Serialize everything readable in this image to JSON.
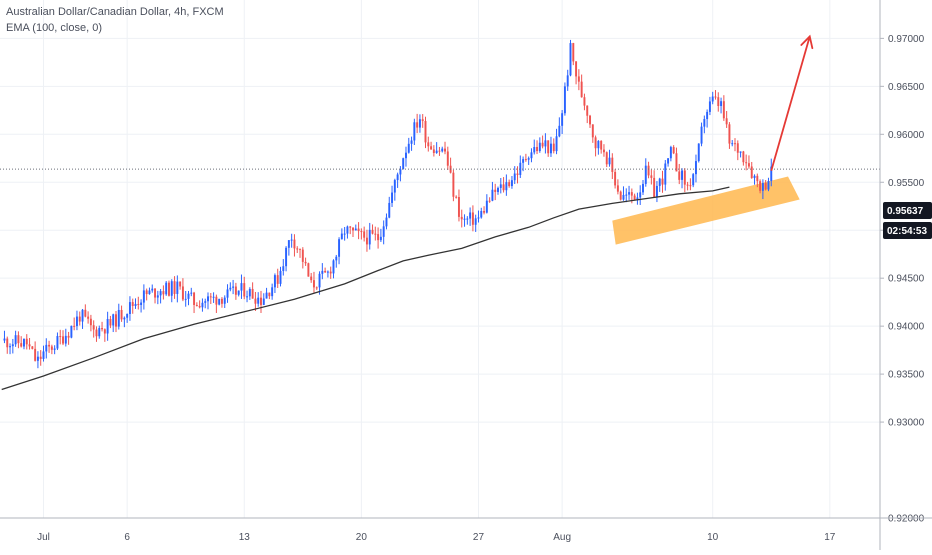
{
  "legend": {
    "symbol_line": "Australian Dollar/Canadian Dollar, 4h, FXCM",
    "indicator_line": "EMA (100, close, 0)"
  },
  "price_tag": {
    "value": "0.95637",
    "countdown": "02:54:53"
  },
  "colors": {
    "up": "#2962ff",
    "down": "#ef5350",
    "ema": "#333333",
    "channel": "#ffb74d",
    "arrow": "#e53935",
    "grid": "#eef1f5",
    "tag_bg": "#131722",
    "axis_text": "#4a4f5c"
  },
  "chart_data": {
    "type": "candlestick",
    "title": "Australian Dollar/Canadian Dollar, 4h, FXCM",
    "indicator": "EMA (100, close, 0)",
    "ylim": [
      0.92,
      0.974
    ],
    "y_ticks": [
      "0.97000",
      "0.96500",
      "0.96000",
      "0.95500",
      "0.95000",
      "0.94500",
      "0.94000",
      "0.93500",
      "0.93000",
      "0.92000"
    ],
    "y_tick_values": [
      0.97,
      0.965,
      0.96,
      0.955,
      0.95,
      0.945,
      0.94,
      0.935,
      0.93,
      0.92
    ],
    "x_ticks": [
      "Jul",
      "6",
      "13",
      "20",
      "27",
      "Aug",
      "10",
      "17"
    ],
    "x_tick_days": [
      1,
      6,
      13,
      20,
      27,
      32,
      41,
      48
    ],
    "xlim_days": [
      -1.6,
      51
    ],
    "last_price": 0.95637,
    "ema": [
      [
        -1.5,
        0.9334
      ],
      [
        1,
        0.9348
      ],
      [
        4,
        0.9367
      ],
      [
        7,
        0.9387
      ],
      [
        10,
        0.9402
      ],
      [
        13,
        0.9415
      ],
      [
        16,
        0.9428
      ],
      [
        19,
        0.9444
      ],
      [
        21,
        0.9458
      ],
      [
        22.5,
        0.9468
      ],
      [
        24,
        0.9474
      ],
      [
        26,
        0.9481
      ],
      [
        28,
        0.9493
      ],
      [
        30,
        0.9503
      ],
      [
        31.5,
        0.9513
      ],
      [
        33,
        0.9522
      ],
      [
        35,
        0.9528
      ],
      [
        37,
        0.9533
      ],
      [
        39,
        0.9538
      ],
      [
        41,
        0.9541
      ],
      [
        42,
        0.9545
      ]
    ],
    "anchors": [
      [
        -1.5,
        0.9385
      ],
      [
        0,
        0.9382
      ],
      [
        0.6,
        0.9362
      ],
      [
        1,
        0.9372
      ],
      [
        1.8,
        0.9383
      ],
      [
        2.5,
        0.9395
      ],
      [
        3.2,
        0.9412
      ],
      [
        4,
        0.9395
      ],
      [
        5,
        0.9402
      ],
      [
        6,
        0.9418
      ],
      [
        7,
        0.9432
      ],
      [
        8,
        0.9438
      ],
      [
        9,
        0.944
      ],
      [
        10,
        0.9425
      ],
      [
        11,
        0.9428
      ],
      [
        12,
        0.9432
      ],
      [
        13,
        0.9438
      ],
      [
        14,
        0.9428
      ],
      [
        15,
        0.945
      ],
      [
        15.8,
        0.9495
      ],
      [
        16.4,
        0.9475
      ],
      [
        17,
        0.9442
      ],
      [
        18,
        0.9455
      ],
      [
        18.5,
        0.9475
      ],
      [
        19,
        0.95
      ],
      [
        20,
        0.9493
      ],
      [
        21,
        0.9492
      ],
      [
        21.5,
        0.9518
      ],
      [
        22,
        0.9548
      ],
      [
        22.5,
        0.9578
      ],
      [
        23,
        0.96
      ],
      [
        23.5,
        0.9618
      ],
      [
        24,
        0.959
      ],
      [
        25,
        0.9582
      ],
      [
        25.5,
        0.954
      ],
      [
        26,
        0.951
      ],
      [
        27,
        0.9512
      ],
      [
        27.5,
        0.9528
      ],
      [
        28,
        0.954
      ],
      [
        28.5,
        0.9545
      ],
      [
        29,
        0.9555
      ],
      [
        29.5,
        0.9565
      ],
      [
        30,
        0.9582
      ],
      [
        31,
        0.959
      ],
      [
        31.5,
        0.958
      ],
      [
        32,
        0.9625
      ],
      [
        32.5,
        0.9688
      ],
      [
        33,
        0.965
      ],
      [
        33.5,
        0.9625
      ],
      [
        34,
        0.959
      ],
      [
        34.5,
        0.9585
      ],
      [
        35,
        0.956
      ],
      [
        35.5,
        0.9535
      ],
      [
        36,
        0.9535
      ],
      [
        36.5,
        0.9538
      ],
      [
        37,
        0.956
      ],
      [
        37.5,
        0.954
      ],
      [
        38,
        0.9555
      ],
      [
        38.5,
        0.958
      ],
      [
        39,
        0.956
      ],
      [
        39.5,
        0.9545
      ],
      [
        40,
        0.9565
      ],
      [
        40.5,
        0.962
      ],
      [
        41,
        0.9635
      ],
      [
        41.5,
        0.963
      ],
      [
        42,
        0.959
      ],
      [
        42.5,
        0.9585
      ],
      [
        43,
        0.9575
      ],
      [
        43.5,
        0.9555
      ],
      [
        44,
        0.9545
      ],
      [
        44.5,
        0.956
      ]
    ],
    "channel": [
      [
        35,
        0.951
      ],
      [
        45.5,
        0.9556
      ],
      [
        46.2,
        0.9532
      ],
      [
        35.2,
        0.9485
      ]
    ],
    "arrow": {
      "from": [
        44.5,
        0.9562
      ],
      "to": [
        46.8,
        0.9702
      ]
    }
  }
}
